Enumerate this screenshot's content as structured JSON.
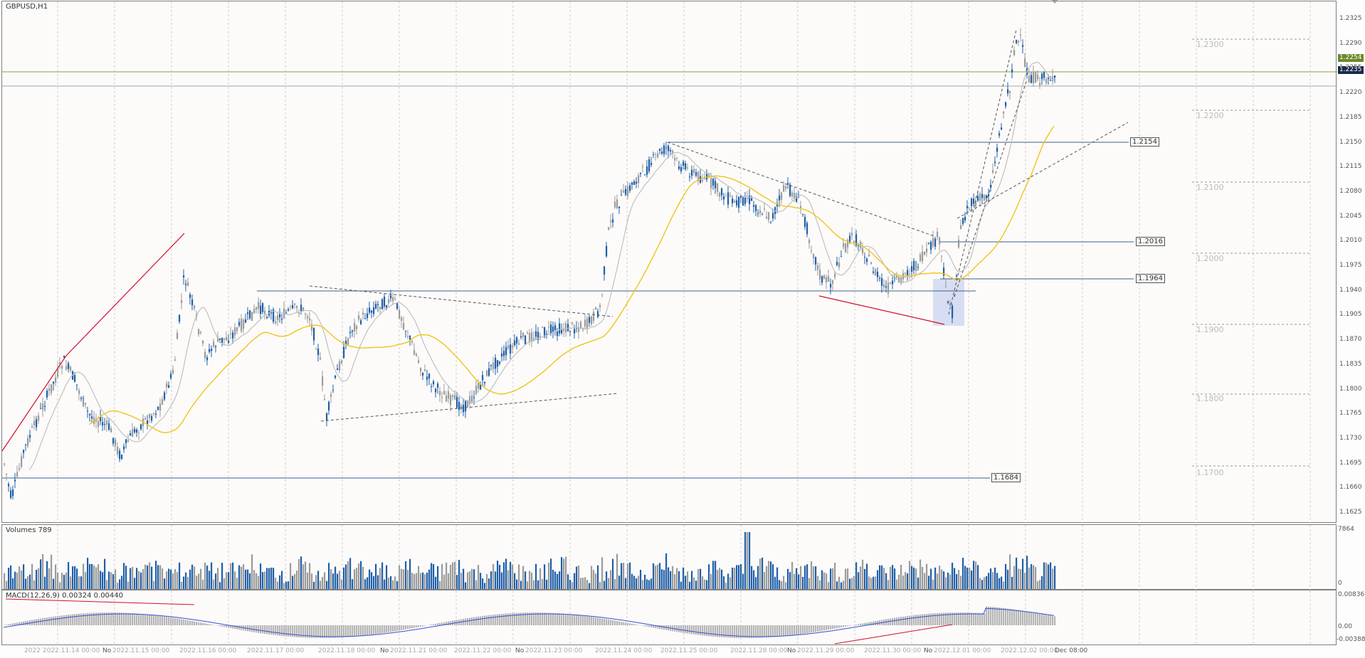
{
  "window": {
    "title": "GBPUSD,H1"
  },
  "colors": {
    "bull": "#1f5fa8",
    "bear": "#9b9b9b",
    "ma_fast": "#c0c0c0",
    "ma_slow": "#f0c419",
    "macd_hist": "#b5b5b5",
    "macd_signal": "#3b4fd8",
    "trendline": "#d0102a",
    "hline": "#3f5f8f",
    "bid_tag": "#1a2a4a",
    "level_tag": "#6a8a2a",
    "highlight": "#c8d2f0"
  },
  "price_axis": {
    "labels": [
      "1.2325",
      "1.2290",
      "1.2255",
      "1.2220",
      "1.2185",
      "1.2150",
      "1.2115",
      "1.2080",
      "1.2045",
      "1.2010",
      "1.1975",
      "1.1940",
      "1.1905",
      "1.1870",
      "1.1835",
      "1.1800",
      "1.1765",
      "1.1730",
      "1.1695",
      "1.1660",
      "1.1625"
    ],
    "current_price_tag": "1.2235",
    "level_price_tag": "1.2254"
  },
  "levels": {
    "round_labels": [
      "1.2300",
      "1.2200",
      "1.2100",
      "1.2000",
      "1.1900",
      "1.1800",
      "1.1700"
    ],
    "box_labels": [
      "1.2154",
      "1.2016",
      "1.1964",
      "1.1684"
    ]
  },
  "volumes": {
    "title": "Volumes 789",
    "max_label": "7864",
    "zero_label": "0"
  },
  "macd": {
    "title": "MACD(12,26,9) 0.00324 0.00440",
    "max_label": "0.00836",
    "zero_label": "0.00",
    "min_label": "-0.00388"
  },
  "time_axis": {
    "labels": [
      "2022",
      "2022.11.14 00:00",
      "No",
      "2022.11.15 00:00",
      "2022.11.16 00:00",
      "2022.11.17 00:00",
      "2022.11.18 00:00",
      "No",
      "2022.11.21 00:00",
      "2022.11.22 00:00",
      "No",
      "2022.11.23 00:00",
      "2022.11.24 00:00",
      "2022.11.25 00:00",
      "2022.11.28 00:00",
      "No",
      "2022.11.29 00:00",
      "2022.11.30 00:00",
      "No",
      "2022.12.01 00:00",
      "2022.12.02 00:00",
      "Dec 08:00"
    ]
  }
}
